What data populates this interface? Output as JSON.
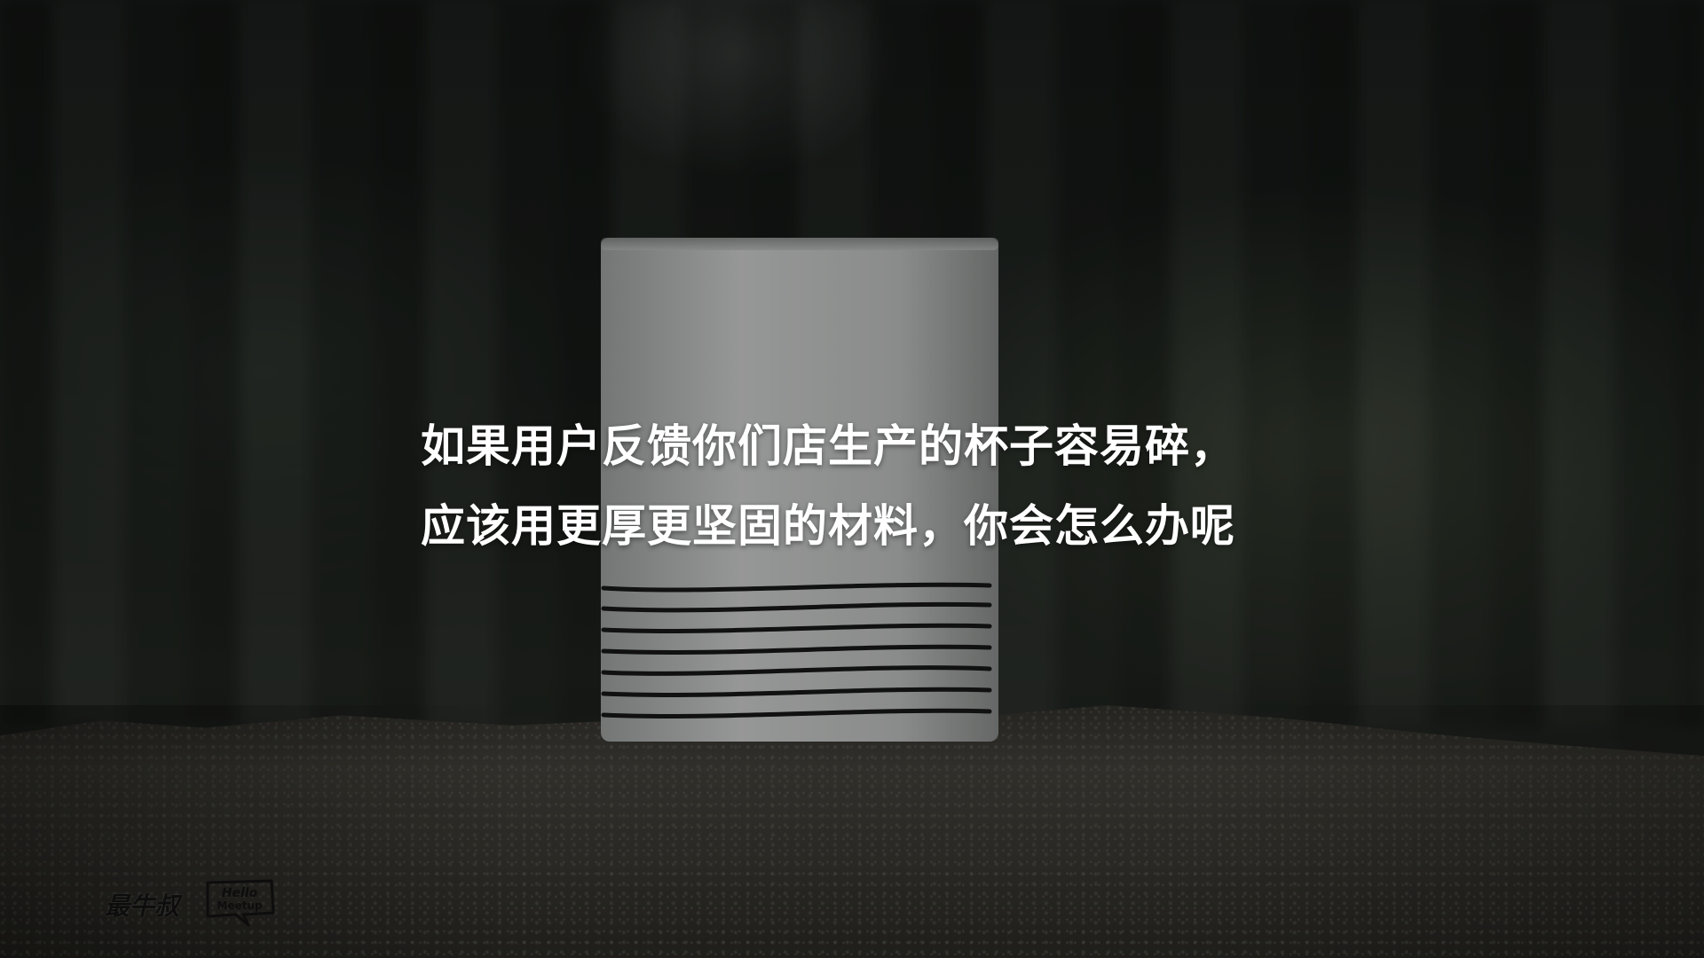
{
  "caption": {
    "line1": "如果用户反馈你们店生产的杯子容易碎，",
    "line2": "应该用更厚更坚固的材料，你会怎么办呢"
  },
  "logos": {
    "brand_cn": "最牛叔",
    "brand_hello": "Hello Meetup"
  },
  "icons": {
    "mug": "mug-photo",
    "hello_badge": "hello-meetup-logo"
  }
}
